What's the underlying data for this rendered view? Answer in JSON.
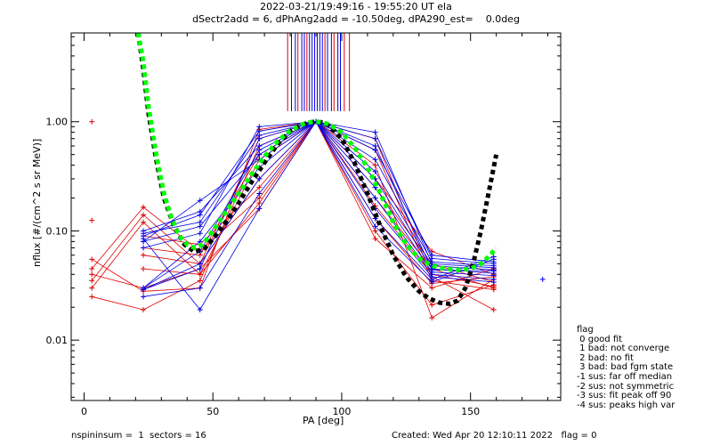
{
  "header": {
    "title_line1": "2022-03-21/19:49:16 - 19:55:20 UT ela",
    "title_line2": "dSectr2add = 6, dPhAng2add = -10.50deg, dPA290_est=    0.0deg"
  },
  "footer": {
    "left": "nspininsum =  1  sectors = 16",
    "right": "Created: Wed Apr 20 12:10:11 2022   flag = 0"
  },
  "legend": {
    "title": "flag",
    "items": [
      " 0 good fit",
      " 1 bad: not converge",
      " 2 bad: no fit",
      " 3 bad: bad fgm state",
      "-1 sus: far off median",
      "-2 sus: not symmetric",
      "-3 sus: fit peak off 90",
      "-4 sus: peaks high var"
    ]
  },
  "colors": {
    "red": "#e00000",
    "blue": "#0000e6",
    "green": "#00ff00",
    "black": "#000000"
  },
  "chart_data": {
    "type": "line",
    "xlabel": "PA [deg]",
    "ylabel": "nflux [#/(cm^2 s sr MeV)]",
    "xlim": [
      -5,
      185
    ],
    "ylim": [
      0.0028,
      6.5
    ],
    "yscale": "log",
    "xticks": [
      0,
      50,
      100,
      150
    ],
    "yticks": [
      0.01,
      0.1,
      1.0
    ],
    "ytick_labels": [
      "0.01",
      "0.10",
      "1.00"
    ],
    "red_lines": [
      {
        "x": [
          3,
          23,
          45,
          68,
          90,
          113,
          135,
          159
        ],
        "y": [
          0.045,
          0.165,
          0.065,
          0.2,
          1.0,
          0.13,
          0.033,
          0.038
        ]
      },
      {
        "x": [
          3,
          23,
          45,
          68,
          90,
          113,
          135,
          159
        ],
        "y": [
          0.035,
          0.14,
          0.05,
          0.3,
          1.0,
          0.17,
          0.04,
          0.031
        ]
      },
      {
        "x": [
          3,
          23,
          45,
          68,
          90,
          113,
          135,
          159
        ],
        "y": [
          0.03,
          0.12,
          0.04,
          0.45,
          1.0,
          0.25,
          0.05,
          0.034
        ]
      },
      {
        "x": [
          3,
          23,
          45,
          68,
          90,
          113,
          135,
          159
        ],
        "y": [
          0.025,
          0.019,
          0.035,
          0.6,
          1.0,
          0.3,
          0.065,
          0.04
        ]
      },
      {
        "x": [
          3,
          23,
          45,
          68,
          90,
          113,
          135,
          159
        ],
        "y": [
          0.055,
          0.028,
          0.03,
          0.85,
          1.0,
          0.4,
          0.016,
          0.036
        ]
      },
      {
        "x": [
          3,
          23,
          45,
          68,
          90,
          113,
          135,
          159
        ],
        "y": [
          0.04,
          0.03,
          0.045,
          0.16,
          1.0,
          0.1,
          0.021,
          0.032
        ]
      },
      {
        "x": [
          23,
          45,
          68,
          90,
          113,
          135,
          159
        ],
        "y": [
          0.09,
          0.075,
          0.25,
          1.0,
          0.55,
          0.035,
          0.029
        ]
      },
      {
        "x": [
          23,
          45,
          68,
          90,
          113,
          135,
          159
        ],
        "y": [
          0.07,
          0.06,
          0.5,
          1.0,
          0.7,
          0.038,
          0.019
        ]
      },
      {
        "x": [
          23,
          45,
          68,
          90,
          113,
          135,
          159
        ],
        "y": [
          0.06,
          0.05,
          0.7,
          1.0,
          0.085,
          0.03,
          0.045
        ]
      },
      {
        "x": [
          23,
          45,
          68,
          90,
          113,
          135,
          159
        ],
        "y": [
          0.045,
          0.04,
          0.18,
          1.0,
          0.2,
          0.045,
          0.03
        ]
      }
    ],
    "blue_lines": [
      {
        "x": [
          23,
          45,
          68,
          90,
          113,
          135,
          159
        ],
        "y": [
          0.08,
          0.19,
          0.45,
          1.0,
          0.55,
          0.06,
          0.052
        ]
      },
      {
        "x": [
          23,
          45,
          68,
          90,
          113,
          135,
          159
        ],
        "y": [
          0.1,
          0.15,
          0.6,
          1.0,
          0.45,
          0.052,
          0.048
        ]
      },
      {
        "x": [
          23,
          45,
          68,
          90,
          113,
          135,
          159
        ],
        "y": [
          0.095,
          0.12,
          0.75,
          1.0,
          0.35,
          0.048,
          0.044
        ]
      },
      {
        "x": [
          23,
          45,
          68,
          90,
          113,
          135,
          159
        ],
        "y": [
          0.07,
          0.095,
          0.9,
          1.0,
          0.3,
          0.045,
          0.041
        ]
      },
      {
        "x": [
          23,
          45,
          68,
          90,
          113,
          135,
          159
        ],
        "y": [
          0.03,
          0.08,
          0.38,
          1.0,
          0.25,
          0.042,
          0.039
        ]
      },
      {
        "x": [
          23,
          45,
          68,
          90,
          113,
          135,
          159
        ],
        "y": [
          0.03,
          0.065,
          0.55,
          1.0,
          0.2,
          0.04,
          0.036
        ]
      },
      {
        "x": [
          23,
          45,
          68,
          90,
          113,
          135,
          159
        ],
        "y": [
          0.029,
          0.05,
          0.3,
          1.0,
          0.16,
          0.038,
          0.034
        ]
      },
      {
        "x": [
          23,
          45,
          68,
          90,
          113,
          135,
          159
        ],
        "y": [
          0.029,
          0.045,
          0.7,
          1.0,
          0.13,
          0.036,
          0.058
        ]
      },
      {
        "x": [
          23,
          45,
          68,
          90,
          113,
          135,
          159
        ],
        "y": [
          0.025,
          0.03,
          0.22,
          1.0,
          0.11,
          0.034,
          0.055
        ]
      },
      {
        "x": [
          23,
          45,
          68,
          90,
          113,
          135,
          159
        ],
        "y": [
          0.085,
          0.019,
          0.16,
          1.0,
          0.7,
          0.056,
          0.05
        ]
      },
      {
        "x": [
          23,
          45,
          68,
          90,
          113,
          135,
          159
        ],
        "y": [
          0.08,
          0.11,
          0.5,
          1.0,
          0.8,
          0.05,
          0.046
        ]
      },
      {
        "x": [
          23,
          45,
          68,
          90,
          113,
          135,
          159
        ],
        "y": [
          0.09,
          0.14,
          0.82,
          1.0,
          0.6,
          0.044,
          0.043
        ]
      }
    ],
    "red_isolated_points": [
      {
        "x": 3,
        "y": 1.0
      },
      {
        "x": 3,
        "y": 0.125
      }
    ],
    "blue_isolated_points": [
      {
        "x": 178,
        "y": 0.036
      }
    ],
    "fit_black": {
      "x": [
        21,
        23,
        25,
        28,
        31,
        35,
        39,
        43,
        47,
        51,
        55,
        60,
        65,
        70,
        75,
        80,
        85,
        88,
        90,
        92,
        95,
        100,
        105,
        110,
        115,
        120,
        125,
        130,
        134,
        138,
        142,
        145,
        148,
        151,
        154,
        157,
        160
      ],
      "y": [
        6.5,
        3.0,
        1.2,
        0.45,
        0.2,
        0.11,
        0.075,
        0.064,
        0.07,
        0.09,
        0.12,
        0.18,
        0.28,
        0.42,
        0.62,
        0.82,
        0.95,
        0.99,
        1.0,
        0.99,
        0.92,
        0.7,
        0.42,
        0.22,
        0.11,
        0.06,
        0.038,
        0.028,
        0.024,
        0.022,
        0.0215,
        0.023,
        0.03,
        0.05,
        0.1,
        0.22,
        0.5
      ]
    },
    "fit_green": {
      "x": [
        21,
        23,
        25,
        28,
        31,
        34,
        37,
        40,
        43,
        46,
        50,
        55,
        60,
        65,
        70,
        75,
        80,
        85,
        88,
        90,
        92,
        95,
        100,
        105,
        110,
        115,
        120,
        125,
        130,
        135,
        140,
        145,
        150,
        154,
        157,
        160
      ],
      "y": [
        6.5,
        3.5,
        1.4,
        0.5,
        0.22,
        0.13,
        0.09,
        0.075,
        0.07,
        0.075,
        0.1,
        0.15,
        0.22,
        0.33,
        0.48,
        0.66,
        0.83,
        0.95,
        0.99,
        1.0,
        0.99,
        0.95,
        0.8,
        0.58,
        0.38,
        0.22,
        0.12,
        0.075,
        0.056,
        0.048,
        0.045,
        0.044,
        0.045,
        0.05,
        0.058,
        0.07
      ]
    },
    "vertical_lines_red": [
      79,
      83,
      86.5,
      93.5,
      97,
      101,
      103
    ],
    "vertical_lines_blue": [
      80.5,
      82,
      84.5,
      85.5,
      87.5,
      88.5,
      89.5,
      90.5,
      91.5,
      92.5,
      94.5,
      96,
      98.5,
      99.5
    ]
  }
}
